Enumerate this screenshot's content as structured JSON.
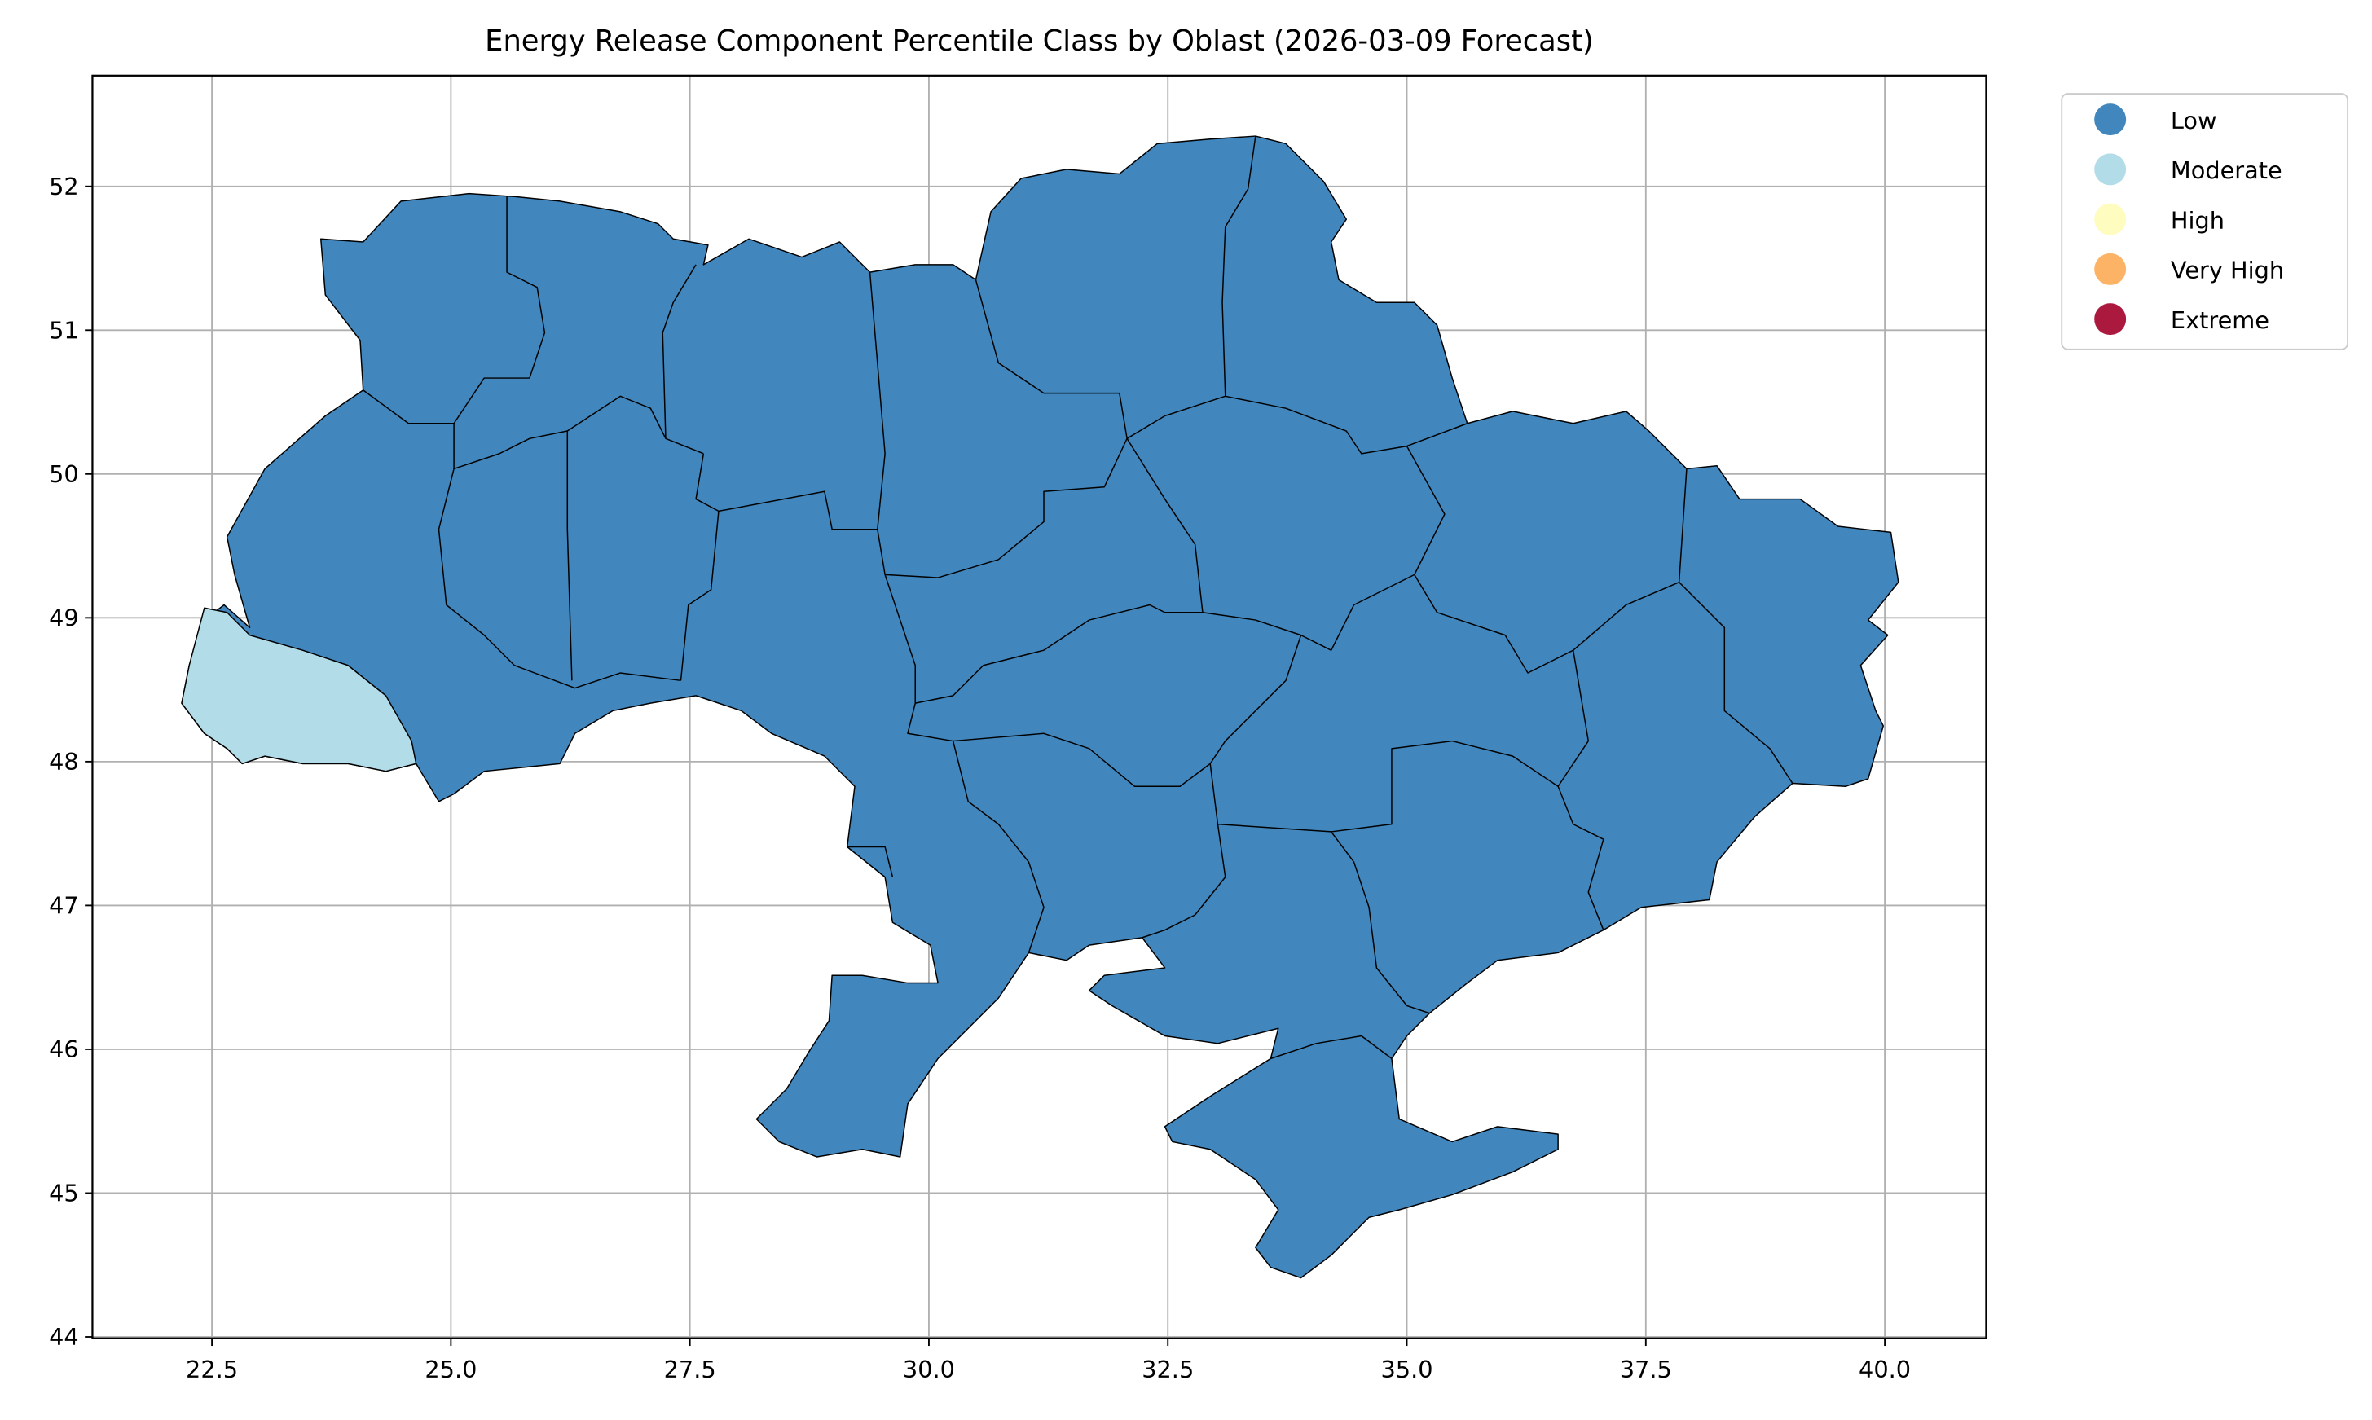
{
  "chart_data": {
    "type": "map",
    "title": "Energy Release Component Percentile Class by Oblast (2026-03-09 Forecast)",
    "categories": [
      "Low",
      "Moderate",
      "High",
      "Very High",
      "Extreme"
    ],
    "colors": [
      "#4186bd",
      "#b3dce9",
      "#fefcbe",
      "#fdb366",
      "#ab1a3e"
    ],
    "xlim": [
      21.25,
      41.06
    ],
    "ylim": [
      43.99,
      52.77
    ],
    "xticks": [
      22.5,
      {
        "value": 25,
        "label": "25.0"
      },
      27.5,
      {
        "value": 30,
        "label": "30.0"
      },
      32.5,
      {
        "value": 35,
        "label": "35.0"
      },
      37.5,
      {
        "value": 40,
        "label": "40.0"
      }
    ],
    "yticks": [
      44,
      45,
      46,
      47,
      48,
      49,
      50,
      51,
      52
    ],
    "grid": true,
    "legend": "outside-upper-right"
  }
}
